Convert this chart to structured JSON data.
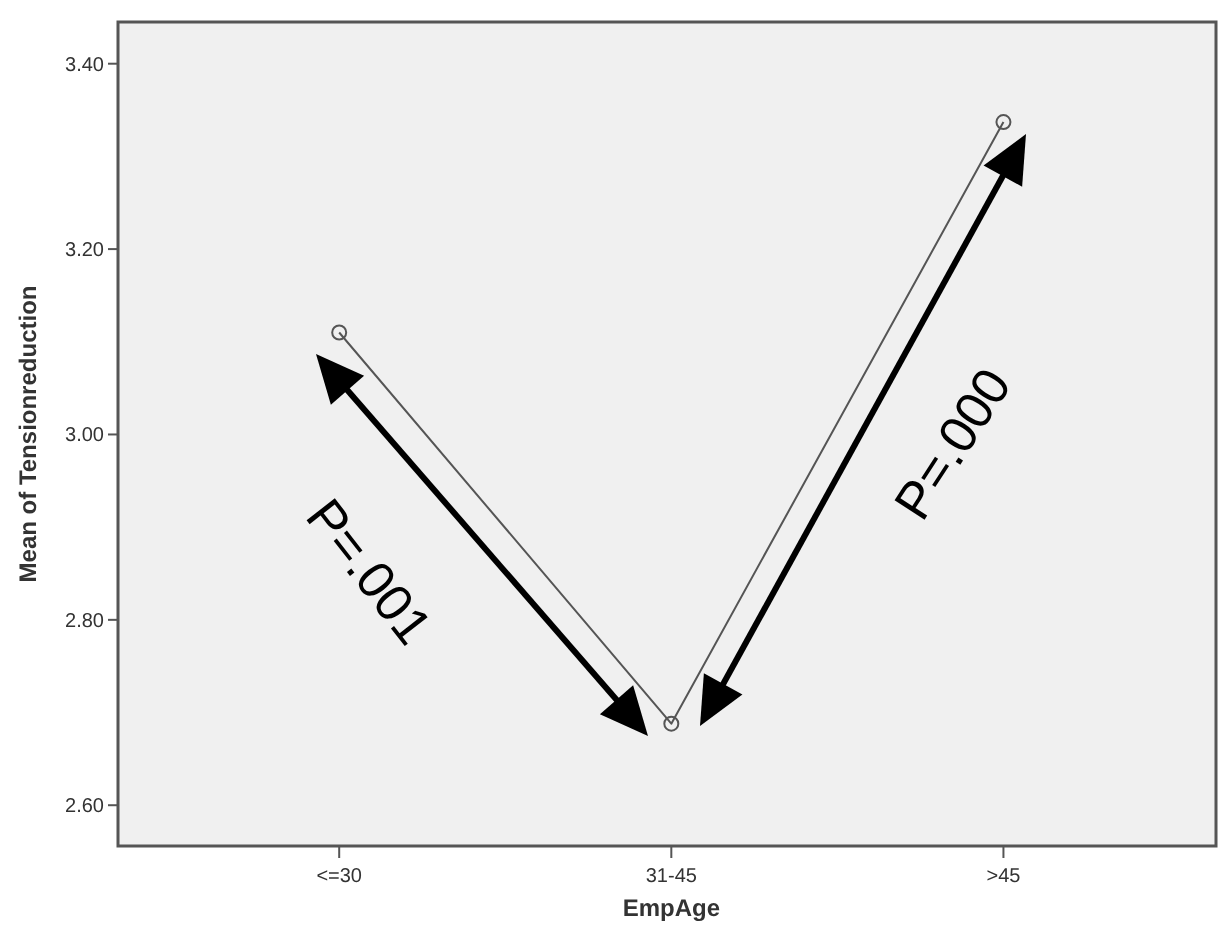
{
  "chart_data": {
    "type": "line",
    "xlabel": "EmpAge",
    "ylabel": "Mean of Tensionreduction",
    "categories": [
      "<=30",
      "31-45",
      ">45"
    ],
    "series": [
      {
        "color": "#555555",
        "values": [
          3.11,
          2.688,
          3.337
        ]
      }
    ],
    "ylim": [
      2.556,
      3.445
    ],
    "yticks": [
      {
        "value": 2.6,
        "label": "2.60"
      },
      {
        "value": 2.8,
        "label": "2.80"
      },
      {
        "value": 3.0,
        "label": "3.00"
      },
      {
        "value": 3.2,
        "label": "3.20"
      },
      {
        "value": 3.4,
        "label": "3.40"
      }
    ],
    "marker": "circle",
    "line_style": "solid",
    "grid": false,
    "annotations": [
      "P=.001",
      "P=.000"
    ]
  }
}
